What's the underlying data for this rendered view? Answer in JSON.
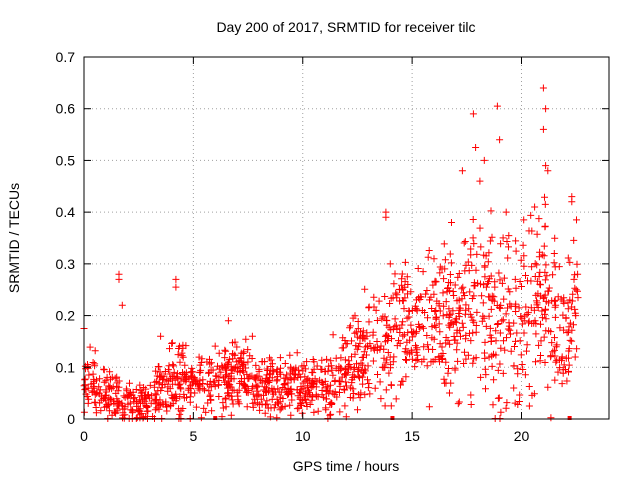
{
  "chart_data": {
    "type": "scatter",
    "title": "Day 200 of 2017, SRMTID for receiver tilc",
    "xlabel": "GPS time / hours",
    "ylabel": "SRMTID / TECUs",
    "xlim": [
      0,
      24
    ],
    "ylim": [
      0,
      0.7
    ],
    "xticks": [
      0,
      5,
      10,
      15,
      20
    ],
    "yticks": [
      0,
      0.1,
      0.2,
      0.3,
      0.4,
      0.5,
      0.6,
      0.7
    ],
    "x_tick_labels": [
      "0",
      "5",
      "10",
      "15",
      "20"
    ],
    "y_tick_labels": [
      "0",
      "0.1",
      "0.2",
      "0.3",
      "0.4",
      "0.5",
      "0.6",
      "0.7"
    ],
    "grid": true,
    "marker": "+",
    "color": "#ff0000",
    "data_range_hours": [
      0,
      22.6
    ],
    "level_profile": {
      "hours": [
        0,
        1,
        2,
        3,
        4,
        5,
        6,
        7,
        8,
        9,
        10,
        11,
        12,
        13,
        14,
        15,
        16,
        17,
        18,
        19,
        20,
        21,
        22,
        22.6
      ],
      "median": [
        0.08,
        0.05,
        0.03,
        0.04,
        0.08,
        0.06,
        0.07,
        0.08,
        0.06,
        0.07,
        0.06,
        0.06,
        0.1,
        0.13,
        0.15,
        0.17,
        0.19,
        0.2,
        0.22,
        0.2,
        0.17,
        0.24,
        0.14,
        0.28
      ],
      "spread": [
        0.05,
        0.04,
        0.03,
        0.04,
        0.05,
        0.05,
        0.05,
        0.05,
        0.04,
        0.04,
        0.04,
        0.04,
        0.06,
        0.08,
        0.09,
        0.1,
        0.1,
        0.12,
        0.13,
        0.13,
        0.12,
        0.13,
        0.1,
        0.1
      ]
    },
    "points": [
      [
        0.0,
        0.175
      ],
      [
        1.6,
        0.28
      ],
      [
        1.6,
        0.27
      ],
      [
        1.75,
        0.22
      ],
      [
        3.5,
        0.16
      ],
      [
        4.2,
        0.27
      ],
      [
        4.2,
        0.255
      ],
      [
        6.6,
        0.19
      ],
      [
        7.7,
        0.16
      ],
      [
        13.8,
        0.4
      ],
      [
        13.8,
        0.39
      ],
      [
        14.0,
        0.3
      ],
      [
        16.0,
        0.31
      ],
      [
        17.3,
        0.48
      ],
      [
        17.8,
        0.59
      ],
      [
        18.3,
        0.5
      ],
      [
        18.9,
        0.605
      ],
      [
        19.0,
        0.54
      ],
      [
        19.3,
        0.4
      ],
      [
        20.6,
        0.41
      ],
      [
        21.0,
        0.64
      ],
      [
        21.1,
        0.6
      ],
      [
        21.0,
        0.56
      ],
      [
        21.1,
        0.49
      ],
      [
        21.2,
        0.48
      ],
      [
        22.3,
        0.43
      ],
      [
        22.3,
        0.42
      ],
      [
        22.4,
        0.27
      ],
      [
        22.5,
        0.25
      ],
      [
        17.9,
        0.525
      ],
      [
        18.1,
        0.46
      ],
      [
        20.1,
        0.385
      ],
      [
        14.8,
        0.26
      ],
      [
        15.5,
        0.285
      ],
      [
        16.8,
        0.38
      ]
    ],
    "baseline_markers_hours": [
      6.0,
      14.1,
      22.2
    ]
  }
}
